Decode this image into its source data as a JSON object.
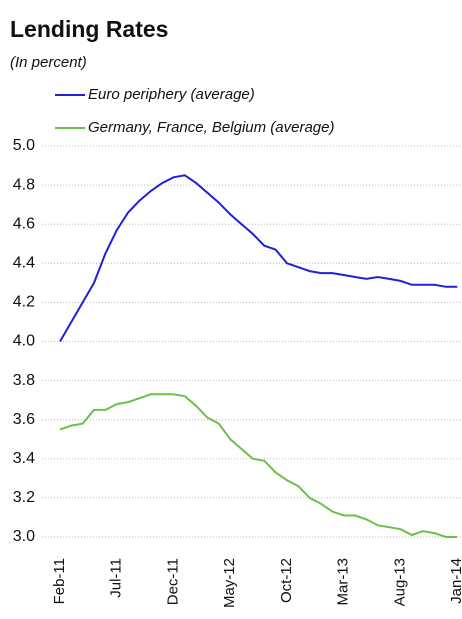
{
  "chart_data": {
    "type": "line",
    "title": "Lending Rates",
    "subtitle": "(In percent)",
    "categories": [
      "Feb-11",
      null,
      null,
      null,
      null,
      "Jul-11",
      null,
      null,
      null,
      null,
      "Dec-11",
      null,
      null,
      null,
      null,
      "May-12",
      null,
      null,
      null,
      null,
      "Oct-12",
      null,
      null,
      null,
      null,
      "Mar-13",
      null,
      null,
      null,
      null,
      "Aug-13",
      null,
      null,
      null,
      null,
      "Jan-14"
    ],
    "series": [
      {
        "name": "Euro periphery (average)",
        "color": "#2020d8",
        "values": [
          4.0,
          4.1,
          4.2,
          4.3,
          4.45,
          4.57,
          4.66,
          4.72,
          4.77,
          4.81,
          4.84,
          4.85,
          4.81,
          4.76,
          4.71,
          4.65,
          4.6,
          4.55,
          4.49,
          4.47,
          4.4,
          4.38,
          4.36,
          4.35,
          4.35,
          4.34,
          4.33,
          4.32,
          4.33,
          4.32,
          4.31,
          4.29,
          4.29,
          4.29,
          4.28,
          4.28
        ]
      },
      {
        "name": "Germany, France, Belgium (average)",
        "color": "#6cc04a",
        "values": [
          3.55,
          3.57,
          3.58,
          3.65,
          3.65,
          3.68,
          3.69,
          3.71,
          3.73,
          3.73,
          3.73,
          3.72,
          3.67,
          3.61,
          3.58,
          3.5,
          3.45,
          3.4,
          3.39,
          3.33,
          3.29,
          3.26,
          3.2,
          3.17,
          3.13,
          3.11,
          3.11,
          3.09,
          3.06,
          3.05,
          3.04,
          3.01,
          3.03,
          3.02,
          3.0,
          3.0
        ]
      }
    ],
    "ylim": [
      3,
      5
    ],
    "yticks": [
      {
        "value": 3,
        "label": "3.0"
      },
      3.2,
      3.4,
      3.6,
      3.8,
      {
        "value": 4,
        "label": "4.0"
      },
      4.2,
      4.4,
      4.6,
      4.8,
      {
        "value": 5,
        "label": "5.0"
      }
    ],
    "grid": true,
    "legend": "top"
  }
}
